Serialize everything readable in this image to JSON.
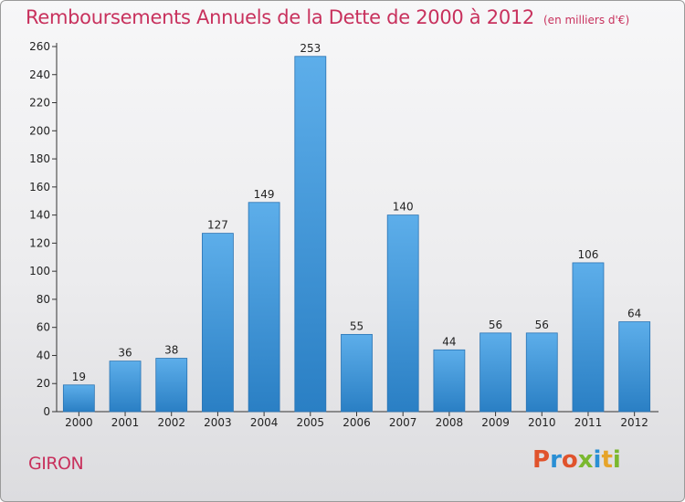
{
  "header": {
    "title": "Remboursements Annuels de la Dette de 2000 à 2012",
    "unit": "(en milliers d'€)"
  },
  "footer": {
    "commune": "GIRON",
    "logo_text": "Proxiti"
  },
  "colors": {
    "title": "#c8315d",
    "bar_top": "#5daeea",
    "bar_bottom": "#2a7fc4",
    "logo": [
      "#e0532c",
      "#2a8fd4",
      "#e0532c",
      "#7ab82f",
      "#2a8fd4",
      "#e6a42a",
      "#7ab82f"
    ]
  },
  "chart_data": {
    "type": "bar",
    "title": "Remboursements Annuels de la Dette de 2000 à 2012",
    "subtitle": "(en milliers d'€)",
    "categories": [
      "2000",
      "2001",
      "2002",
      "2003",
      "2004",
      "2005",
      "2006",
      "2007",
      "2008",
      "2009",
      "2010",
      "2011",
      "2012"
    ],
    "values": [
      19,
      36,
      38,
      127,
      149,
      253,
      55,
      140,
      44,
      56,
      56,
      106,
      64
    ],
    "xlabel": "",
    "ylabel": "",
    "ylim": [
      0,
      260
    ],
    "yticks": [
      0,
      20,
      40,
      60,
      80,
      100,
      120,
      140,
      160,
      180,
      200,
      220,
      240,
      260
    ],
    "grid": false,
    "legend": "none"
  }
}
